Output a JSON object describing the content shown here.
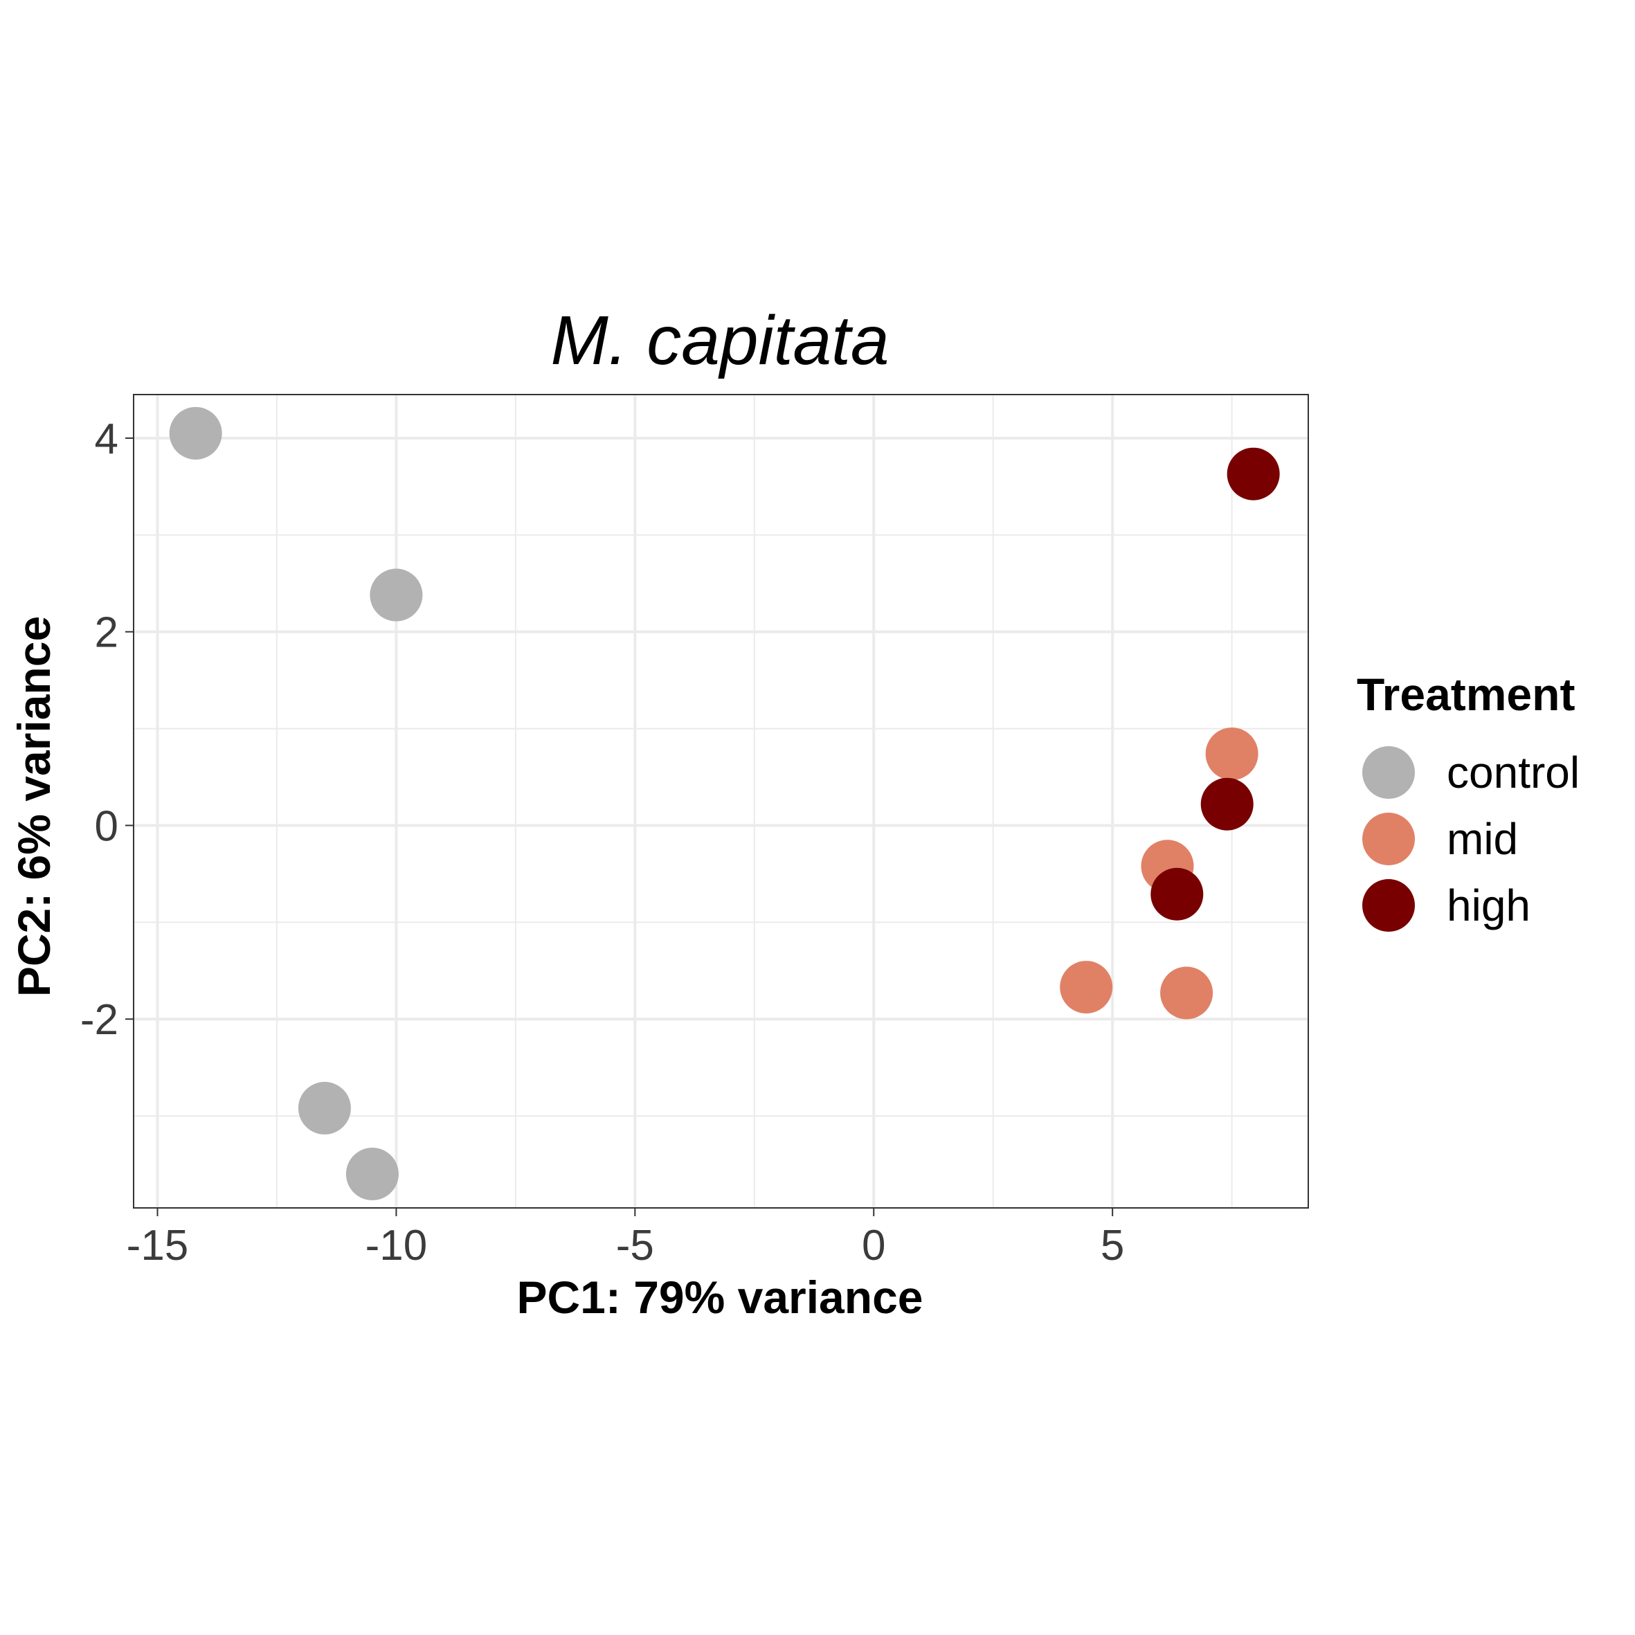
{
  "chart_data": {
    "type": "scatter",
    "title": "M. capitata",
    "xlabel": "PC1: 79% variance",
    "ylabel": "PC2: 6% variance",
    "xlim": [
      -15.5,
      9.1
    ],
    "ylim": [
      -3.95,
      4.45
    ],
    "x_ticks": [
      -15,
      -10,
      -5,
      0,
      5
    ],
    "x_tick_labels": [
      "-15",
      "-10",
      "-5",
      "0",
      "5"
    ],
    "y_ticks": [
      -2,
      0,
      2,
      4
    ],
    "y_tick_labels": [
      "-2",
      "0",
      "2",
      "4"
    ],
    "grid": true,
    "legend_title": "Treatment",
    "legend_position": "right",
    "series": [
      {
        "name": "control",
        "color": "#b2b2b2",
        "points": [
          [
            -14.2,
            4.05
          ],
          [
            -10.0,
            2.38
          ],
          [
            -11.5,
            -2.92
          ],
          [
            -10.5,
            -3.6
          ]
        ]
      },
      {
        "name": "mid",
        "color": "#e08166",
        "points": [
          [
            7.5,
            0.74
          ],
          [
            6.15,
            -0.42
          ],
          [
            4.45,
            -1.67
          ],
          [
            6.55,
            -1.73
          ]
        ]
      },
      {
        "name": "high",
        "color": "#780000",
        "points": [
          [
            7.95,
            3.63
          ],
          [
            7.4,
            0.22
          ],
          [
            6.35,
            -0.71
          ]
        ]
      }
    ]
  }
}
